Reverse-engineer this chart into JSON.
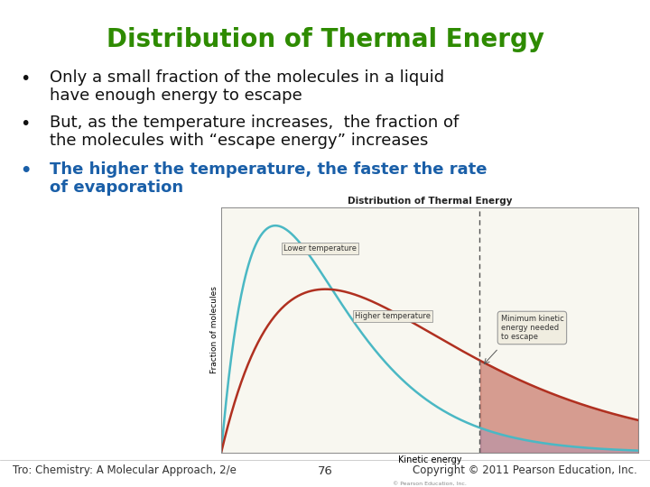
{
  "title": "Distribution of Thermal Energy",
  "title_color": "#2e8b00",
  "title_fontsize": 20,
  "bullet1_line1": "Only a small fraction of the molecules in a liquid",
  "bullet1_line2": "have enough energy to escape",
  "bullet2_line1": "But, as the temperature increases,  the fraction of",
  "bullet2_line2": "the molecules with “escape energy” increases",
  "bullet3_line1": "The higher the temperature, the faster the rate",
  "bullet3_line2": "of evaporation",
  "bullet3_color": "#1a5fa8",
  "bullet_color": "#111111",
  "bullet_fontsize": 13,
  "background_color": "#ffffff",
  "footer_left": "Tro: Chemistry: A Molecular Approach, 2/e",
  "footer_center": "76",
  "footer_right": "Copyright © 2011 Pearson Education, Inc.",
  "footer_fontsize": 8.5,
  "chart_title": "Distribution of Thermal Energy",
  "chart_xlabel": "Kinetic energy",
  "chart_ylabel": "Fraction of molecules",
  "lower_temp_label": "Lower temperature",
  "higher_temp_label": "Higher temperature",
  "min_ke_label": "Minimum kinetic\nenergy needed\nto escape",
  "lower_temp_color": "#4ab8c4",
  "higher_temp_color": "#b03020",
  "fill_color": "#c06050",
  "dashed_line_color": "#555555",
  "chart_bg": "#f8f7f0",
  "box_bg": "#f0ede0",
  "label_box_bg": "#f0ede0",
  "credit_text": "© Pearson Education, Inc."
}
